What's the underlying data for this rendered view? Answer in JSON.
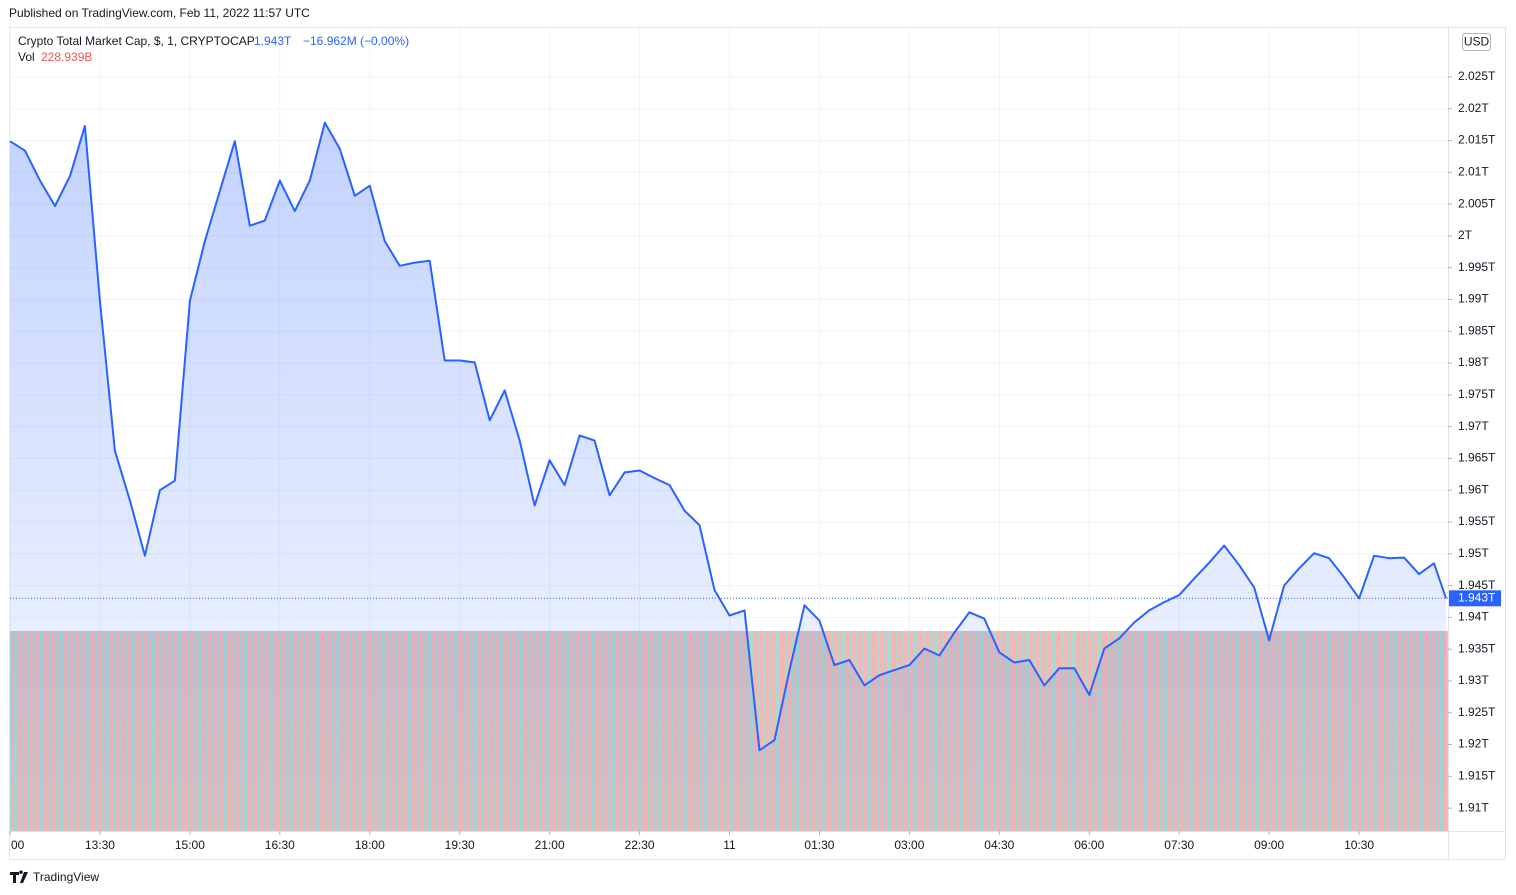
{
  "header": {
    "published": "Published on TradingView.com, Feb 11, 2022 11:57 UTC"
  },
  "legend": {
    "symbol": "Crypto Total Market Cap, $, 1, CRYPTOCAP",
    "price": "1.943T",
    "change": "−16.962M (−0.00%)",
    "vol_label": "Vol",
    "vol_value": "228.939B"
  },
  "currency": "USD",
  "footer": {
    "brand": "TradingView"
  },
  "chart_data": {
    "type": "area",
    "color": "#2962ff",
    "last_label": "1.943T",
    "xlim": [
      12,
      35.983
    ],
    "ylim": [
      1.9064,
      2.0327
    ],
    "xticks": [
      {
        "value": 12,
        "label": "00"
      },
      {
        "value": 13.5,
        "label": "13:30"
      },
      {
        "value": 15,
        "label": "15:00"
      },
      {
        "value": 16.5,
        "label": "16:30"
      },
      {
        "value": 18,
        "label": "18:00"
      },
      {
        "value": 19.5,
        "label": "19:30"
      },
      {
        "value": 21,
        "label": "21:00"
      },
      {
        "value": 22.5,
        "label": "22:30"
      },
      {
        "value": 24,
        "label": "11"
      },
      {
        "value": 25.5,
        "label": "01:30"
      },
      {
        "value": 27,
        "label": "03:00"
      },
      {
        "value": 28.5,
        "label": "04:30"
      },
      {
        "value": 30,
        "label": "06:00"
      },
      {
        "value": 31.5,
        "label": "07:30"
      },
      {
        "value": 33,
        "label": "09:00"
      },
      {
        "value": 34.5,
        "label": "10:30"
      }
    ],
    "yticks": [
      {
        "value": 1.91,
        "label": "1.91T"
      },
      {
        "value": 1.915,
        "label": "1.915T"
      },
      {
        "value": 1.92,
        "label": "1.92T"
      },
      {
        "value": 1.925,
        "label": "1.925T"
      },
      {
        "value": 1.93,
        "label": "1.93T"
      },
      {
        "value": 1.935,
        "label": "1.935T"
      },
      {
        "value": 1.94,
        "label": "1.94T"
      },
      {
        "value": 1.945,
        "label": "1.945T"
      },
      {
        "value": 1.95,
        "label": "1.95T"
      },
      {
        "value": 1.955,
        "label": "1.955T"
      },
      {
        "value": 1.96,
        "label": "1.96T"
      },
      {
        "value": 1.965,
        "label": "1.965T"
      },
      {
        "value": 1.97,
        "label": "1.97T"
      },
      {
        "value": 1.975,
        "label": "1.975T"
      },
      {
        "value": 1.98,
        "label": "1.98T"
      },
      {
        "value": 1.985,
        "label": "1.985T"
      },
      {
        "value": 1.99,
        "label": "1.99T"
      },
      {
        "value": 1.995,
        "label": "1.995T"
      },
      {
        "value": 2,
        "label": "2T"
      },
      {
        "value": 2.005,
        "label": "2.005T"
      },
      {
        "value": 2.01,
        "label": "2.01T"
      },
      {
        "value": 2.015,
        "label": "2.015T"
      },
      {
        "value": 2.02,
        "label": "2.02T"
      },
      {
        "value": 2.025,
        "label": "2.025T"
      }
    ],
    "x": [
      12,
      12.25,
      12.5,
      12.75,
      13,
      13.25,
      13.5,
      13.75,
      14,
      14.25,
      14.5,
      14.75,
      15,
      15.25,
      15.5,
      15.75,
      16,
      16.25,
      16.5,
      16.75,
      17,
      17.25,
      17.5,
      17.75,
      18,
      18.25,
      18.5,
      18.75,
      19,
      19.25,
      19.5,
      19.75,
      20,
      20.25,
      20.5,
      20.75,
      21,
      21.25,
      21.5,
      21.75,
      22,
      22.25,
      22.5,
      22.75,
      23,
      23.25,
      23.5,
      23.75,
      24,
      24.25,
      24.5,
      24.75,
      25,
      25.25,
      25.5,
      25.75,
      26,
      26.25,
      26.5,
      26.75,
      27,
      27.25,
      27.5,
      27.75,
      28,
      28.25,
      28.5,
      28.75,
      29,
      29.25,
      29.5,
      29.75,
      30,
      30.25,
      30.5,
      30.75,
      31,
      31.25,
      31.5,
      31.75,
      32,
      32.25,
      32.5,
      32.75,
      33,
      33.25,
      33.5,
      33.75,
      34,
      34.25,
      34.5,
      34.75,
      35,
      35.25,
      35.5,
      35.75,
      35.95
    ],
    "values": [
      2.0149,
      2.0134,
      2.0087,
      2.0047,
      2.0094,
      2.0173,
      1.9898,
      1.9662,
      1.9584,
      1.9497,
      1.96,
      1.9615,
      1.9898,
      1.9992,
      2.0071,
      2.0149,
      2.0016,
      2.0024,
      2.0087,
      2.0039,
      2.0087,
      2.0178,
      2.0137,
      2.0063,
      2.0079,
      1.9992,
      1.9953,
      1.9958,
      1.9961,
      1.9804,
      1.9804,
      1.9801,
      1.971,
      1.9757,
      1.9678,
      1.9576,
      1.9647,
      1.9608,
      1.9686,
      1.9678,
      1.9592,
      1.9628,
      1.9631,
      1.9619,
      1.9608,
      1.9568,
      1.9545,
      1.9443,
      1.9403,
      1.9411,
      1.9191,
      1.9207,
      1.9317,
      1.9419,
      1.9395,
      1.9325,
      1.9333,
      1.9293,
      1.9309,
      1.9317,
      1.9325,
      1.9351,
      1.934,
      1.9376,
      1.9408,
      1.9398,
      1.9345,
      1.9329,
      1.9333,
      1.9293,
      1.932,
      1.932,
      1.9278,
      1.9351,
      1.9367,
      1.9392,
      1.9411,
      1.9424,
      1.9435,
      1.9461,
      1.9486,
      1.9513,
      1.9482,
      1.9447,
      1.9364,
      1.945,
      1.9477,
      1.9501,
      1.9493,
      1.9463,
      1.943,
      1.9497,
      1.9493,
      1.9494,
      1.9468,
      1.9485,
      1.943
    ]
  }
}
